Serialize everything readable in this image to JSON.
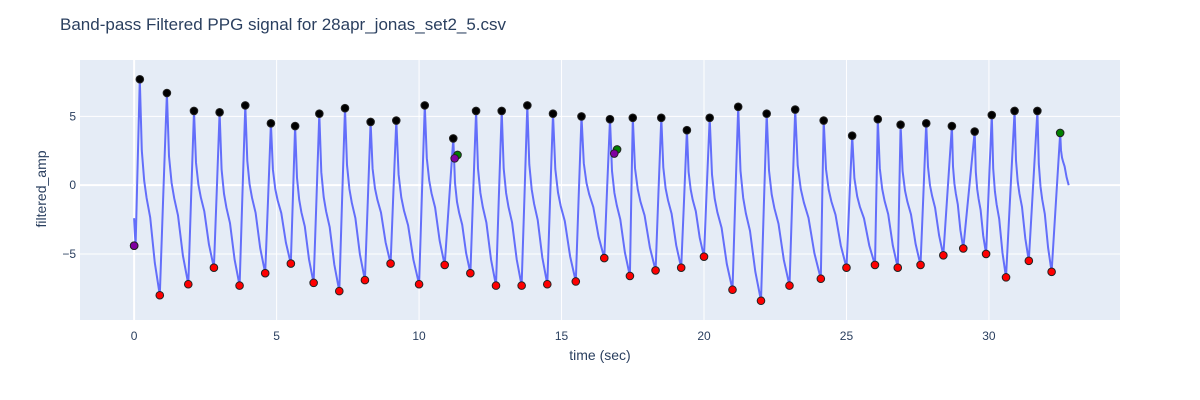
{
  "chart_data": {
    "type": "line",
    "title": "Band-pass Filtered PPG signal for 28apr_jonas_set2_5.csv",
    "xlabel": "time (sec)",
    "ylabel": "filtered_amp",
    "xlim": [
      -1.9,
      34.6
    ],
    "ylim": [
      -9.8,
      9.1
    ],
    "x_ticks": [
      0,
      5,
      10,
      15,
      20,
      25,
      30
    ],
    "x_tick_labels": [
      "0",
      "5",
      "10",
      "15",
      "20",
      "25",
      "30"
    ],
    "y_ticks": [
      -5,
      0,
      5
    ],
    "y_tick_labels": [
      "−5",
      "0",
      "5"
    ],
    "grid": true,
    "colors": {
      "background": "#e5ecf6",
      "grid": "#ffffff",
      "signal": "#636efa",
      "peaks": "#000000",
      "troughs": "#ff0000",
      "green_markers": "#008000",
      "purple_markers": "#8000a0"
    },
    "series": [],
    "peaks": [
      [
        0.2,
        7.7
      ],
      [
        1.15,
        6.7
      ],
      [
        2.1,
        5.4
      ],
      [
        3.0,
        5.3
      ],
      [
        3.9,
        5.8
      ],
      [
        4.8,
        4.5
      ],
      [
        5.65,
        4.3
      ],
      [
        6.5,
        5.2
      ],
      [
        7.4,
        5.6
      ],
      [
        8.3,
        4.6
      ],
      [
        9.2,
        4.7
      ],
      [
        10.2,
        5.8
      ],
      [
        11.2,
        3.4
      ],
      [
        12.0,
        5.4
      ],
      [
        12.9,
        5.4
      ],
      [
        13.8,
        5.8
      ],
      [
        14.7,
        5.2
      ],
      [
        15.7,
        5.0
      ],
      [
        16.7,
        4.8
      ],
      [
        17.5,
        4.9
      ],
      [
        18.5,
        4.9
      ],
      [
        19.4,
        4.0
      ],
      [
        20.2,
        4.9
      ],
      [
        21.2,
        5.7
      ],
      [
        22.2,
        5.2
      ],
      [
        23.2,
        5.5
      ],
      [
        24.2,
        4.7
      ],
      [
        25.2,
        3.6
      ],
      [
        26.1,
        4.8
      ],
      [
        26.9,
        4.4
      ],
      [
        27.8,
        4.5
      ],
      [
        28.7,
        4.3
      ],
      [
        29.5,
        3.9
      ],
      [
        30.1,
        5.1
      ],
      [
        30.9,
        5.4
      ],
      [
        31.7,
        5.4
      ]
    ],
    "troughs": [
      [
        0.9,
        -8.0
      ],
      [
        1.9,
        -7.2
      ],
      [
        2.8,
        -6.0
      ],
      [
        3.7,
        -7.3
      ],
      [
        4.6,
        -6.4
      ],
      [
        5.5,
        -5.7
      ],
      [
        6.3,
        -7.1
      ],
      [
        7.2,
        -7.7
      ],
      [
        8.1,
        -6.9
      ],
      [
        9.0,
        -5.7
      ],
      [
        10.0,
        -7.2
      ],
      [
        10.9,
        -5.8
      ],
      [
        11.8,
        -6.4
      ],
      [
        12.7,
        -7.3
      ],
      [
        13.6,
        -7.3
      ],
      [
        14.5,
        -7.2
      ],
      [
        15.5,
        -7.0
      ],
      [
        16.5,
        -5.3
      ],
      [
        17.4,
        -6.6
      ],
      [
        18.3,
        -6.2
      ],
      [
        19.2,
        -6.0
      ],
      [
        20.0,
        -5.2
      ],
      [
        21.0,
        -7.6
      ],
      [
        22.0,
        -8.4
      ],
      [
        23.0,
        -7.3
      ],
      [
        24.1,
        -6.8
      ],
      [
        25.0,
        -6.0
      ],
      [
        26.0,
        -5.8
      ],
      [
        26.8,
        -6.0
      ],
      [
        27.6,
        -5.8
      ],
      [
        28.4,
        -5.1
      ],
      [
        29.1,
        -4.6
      ],
      [
        29.9,
        -5.0
      ],
      [
        30.6,
        -6.7
      ],
      [
        31.4,
        -5.5
      ],
      [
        32.2,
        -6.3
      ]
    ],
    "green_markers": [
      [
        0.0,
        -4.4
      ],
      [
        11.35,
        2.2
      ],
      [
        16.95,
        2.6
      ],
      [
        32.5,
        3.8
      ]
    ],
    "purple_markers": [
      [
        0.0,
        -4.4
      ],
      [
        11.25,
        1.95
      ],
      [
        16.85,
        2.3
      ]
    ]
  }
}
